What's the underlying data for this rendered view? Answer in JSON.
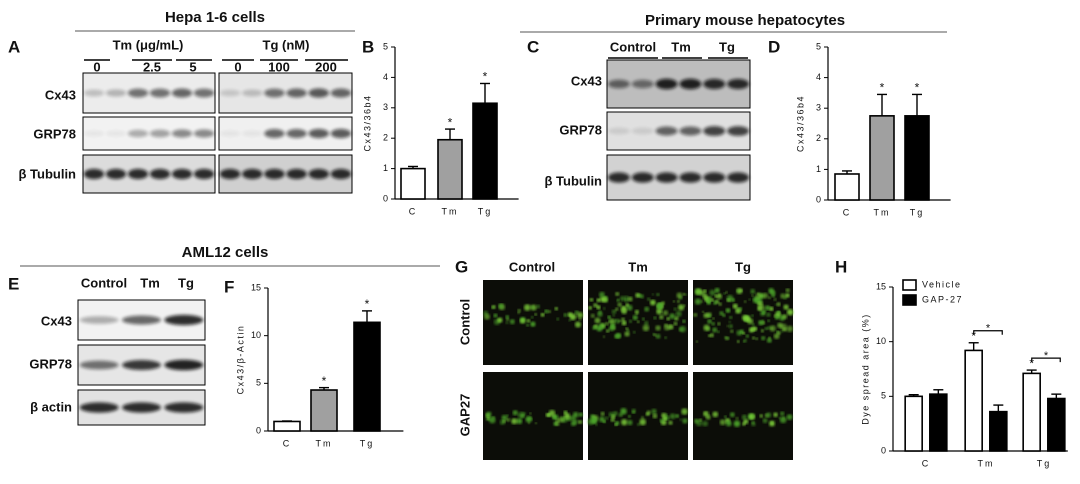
{
  "panel_letters": [
    "A",
    "B",
    "C",
    "D",
    "E",
    "F",
    "G",
    "H"
  ],
  "hepa": {
    "title": "Hepa 1-6 cells",
    "treatments": [
      {
        "label": "Tm (μg/mL)",
        "doses": [
          "0",
          "2.5",
          "5"
        ]
      },
      {
        "label": "Tg (nM)",
        "doses": [
          "0",
          "100",
          "200"
        ]
      }
    ],
    "rows": [
      "Cx43",
      "GRP78",
      "β Tubulin"
    ]
  },
  "primary": {
    "title": "Primary mouse hepatocytes",
    "lanes": [
      "Control",
      "Tm",
      "Tg"
    ],
    "rows": [
      "Cx43",
      "GRP78",
      "β Tubulin"
    ]
  },
  "aml12": {
    "title": "AML12 cells",
    "lanes": [
      "Control",
      "Tm",
      "Tg"
    ],
    "rows": [
      "Cx43",
      "GRP78",
      "β actin"
    ]
  },
  "microscopy": {
    "columns": [
      "Control",
      "Tm",
      "Tg"
    ],
    "rows": [
      "Control",
      "GAP27"
    ]
  },
  "chart_data": [
    {
      "type": "bar",
      "y_label": "Cx43/36b4",
      "categories": [
        "C",
        "Tm",
        "Tg"
      ],
      "values": [
        1.0,
        1.95,
        3.15
      ],
      "errors": [
        0.07,
        0.35,
        0.65
      ],
      "significance": [
        null,
        "*",
        "*"
      ],
      "colors": [
        "#ffffff",
        "#a0a0a0",
        "#000000"
      ],
      "ylim": [
        0,
        5
      ],
      "yticks": [
        0,
        1,
        2,
        3,
        4,
        5
      ]
    },
    {
      "type": "bar",
      "y_label": "Cx43/36b4",
      "categories": [
        "C",
        "Tm",
        "Tg"
      ],
      "values": [
        0.85,
        2.75,
        2.75
      ],
      "errors": [
        0.1,
        0.7,
        0.7
      ],
      "significance": [
        null,
        "*",
        "*"
      ],
      "colors": [
        "#ffffff",
        "#a0a0a0",
        "#000000"
      ],
      "ylim": [
        0,
        5
      ],
      "yticks": [
        0,
        1,
        2,
        3,
        4,
        5
      ]
    },
    {
      "type": "bar",
      "y_label": "Cx43/β-Actin",
      "categories": [
        "C",
        "Tm",
        "Tg"
      ],
      "values": [
        1.0,
        4.3,
        11.4
      ],
      "errors": [
        0.05,
        0.25,
        1.2
      ],
      "significance": [
        null,
        "*",
        "*"
      ],
      "colors": [
        "#ffffff",
        "#a0a0a0",
        "#000000"
      ],
      "ylim": [
        0,
        15
      ],
      "yticks": [
        0,
        5,
        10,
        15
      ]
    },
    {
      "type": "bar",
      "y_label": "Dye spread area (%)",
      "categories": [
        "C",
        "Tm",
        "Tg"
      ],
      "series": [
        {
          "name": "Vehicle",
          "color": "#ffffff",
          "values": [
            5.0,
            9.2,
            7.1
          ],
          "errors": [
            0.15,
            0.7,
            0.3
          ],
          "significance": [
            null,
            "*",
            "*"
          ]
        },
        {
          "name": "GAP-27",
          "color": "#000000",
          "values": [
            5.2,
            3.6,
            4.8
          ],
          "errors": [
            0.4,
            0.6,
            0.4
          ],
          "significance": [
            null,
            null,
            null
          ]
        }
      ],
      "bracket_labels": [
        null,
        "*",
        "*"
      ],
      "ylim": [
        0,
        15
      ],
      "yticks": [
        0,
        5,
        10,
        15
      ]
    }
  ]
}
